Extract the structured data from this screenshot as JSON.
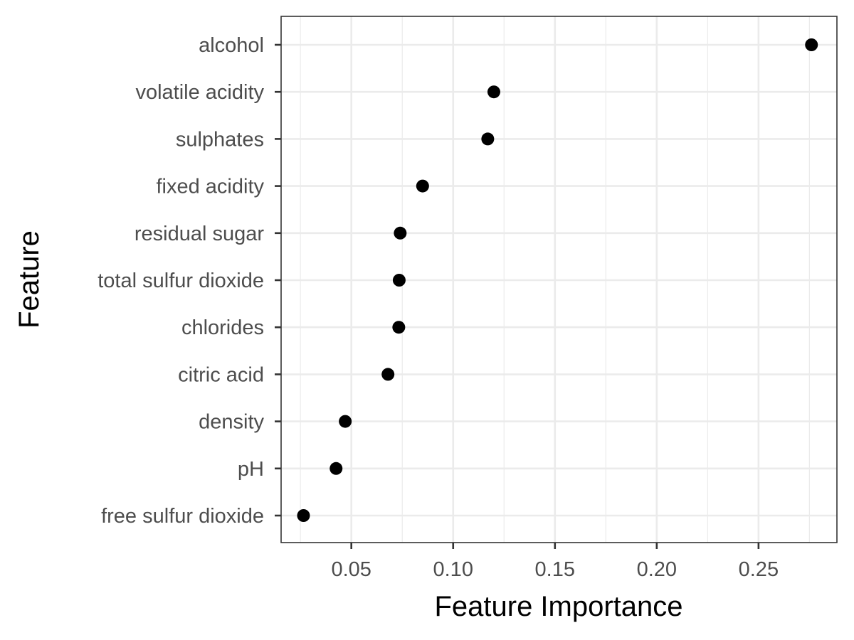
{
  "chart_data": {
    "type": "scatter",
    "title": "",
    "xlabel": "Feature Importance",
    "ylabel": "Feature",
    "xlim": [
      0.0155,
      0.2885
    ],
    "xticks": [
      0.05,
      0.1,
      0.15,
      0.2,
      0.25
    ],
    "xtick_labels": [
      "0.05",
      "0.10",
      "0.15",
      "0.20",
      "0.25"
    ],
    "grid": true,
    "legend": "none",
    "point_color": "#000000",
    "categories": [
      "alcohol",
      "volatile acidity",
      "sulphates",
      "fixed acidity",
      "residual sugar",
      "total sulfur dioxide",
      "chlorides",
      "citric acid",
      "density",
      "pH",
      "free sulfur dioxide"
    ],
    "values": [
      0.276,
      0.12,
      0.117,
      0.085,
      0.074,
      0.0735,
      0.0733,
      0.068,
      0.047,
      0.0425,
      0.0265
    ]
  }
}
